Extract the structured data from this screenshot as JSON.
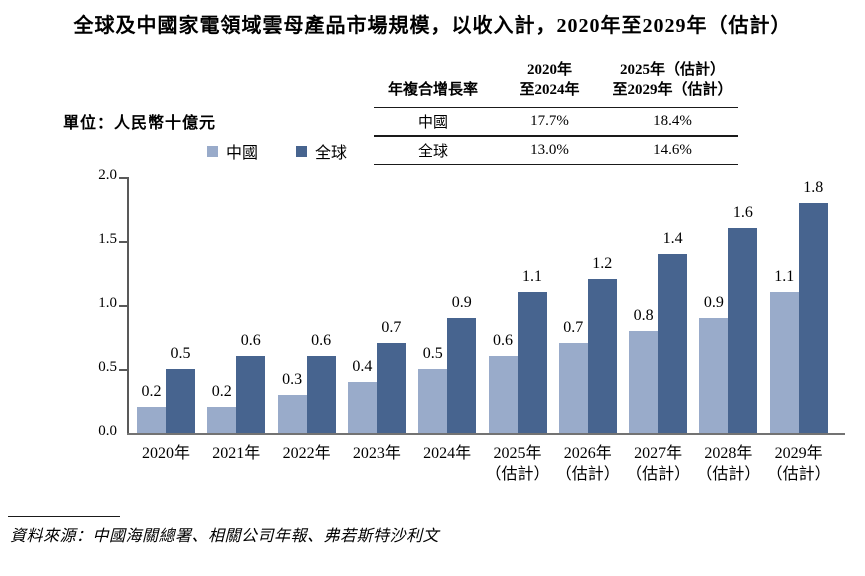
{
  "title": "全球及中國家電領域雲母產品市場規模，以收入計，2020年至2029年（估計）",
  "unit_label": "單位：人民幣十億元",
  "source": "資料來源：中國海關總署、相關公司年報、弗若斯特沙利文",
  "colors": {
    "china_bar": "#99ABCA",
    "global_bar": "#47648F",
    "axis": "#595959",
    "baseline": "#737373",
    "text": "#000000"
  },
  "legend": {
    "items": [
      {
        "label": "中國"
      },
      {
        "label": "全球"
      }
    ]
  },
  "cagr_table": {
    "header": {
      "col1": "年複合增長率",
      "col2_line1": "2020年",
      "col2_line2": "至2024年",
      "col3_line1": "2025年（估計）",
      "col3_line2": "至2029年（估計）"
    },
    "rows": [
      {
        "label": "中國",
        "v1": "17.7%",
        "v2": "18.4%"
      },
      {
        "label": "全球",
        "v1": "13.0%",
        "v2": "14.6%"
      }
    ]
  },
  "chart_data": {
    "type": "bar",
    "title": "全球及中國家電領域雲母產品市場規模，以收入計，2020年至2029年（估計）",
    "ylabel": "單位：人民幣十億元",
    "ylim": [
      0,
      2.0
    ],
    "yticks": [
      "0.0",
      "0.5",
      "1.0",
      "1.5",
      "2.0"
    ],
    "grid": false,
    "legend_position": "top-left",
    "categories": [
      [
        "2020年"
      ],
      [
        "2021年"
      ],
      [
        "2022年"
      ],
      [
        "2023年"
      ],
      [
        "2024年"
      ],
      [
        "2025年",
        "（估計）"
      ],
      [
        "2026年",
        "（估計）"
      ],
      [
        "2027年",
        "（估計）"
      ],
      [
        "2028年",
        "（估計）"
      ],
      [
        "2029年",
        "（估計）"
      ]
    ],
    "series": [
      {
        "name": "中國",
        "color": "#99ABCA",
        "values": [
          0.2,
          0.2,
          0.3,
          0.4,
          0.5,
          0.6,
          0.7,
          0.8,
          0.9,
          1.1
        ]
      },
      {
        "name": "全球",
        "color": "#47648F",
        "values": [
          0.5,
          0.6,
          0.6,
          0.7,
          0.9,
          1.1,
          1.2,
          1.4,
          1.6,
          1.8
        ]
      }
    ],
    "cagr": [
      {
        "name": "中國",
        "2020-2024": "17.7%",
        "2025-2029 (est.)": "18.4%"
      },
      {
        "name": "全球",
        "2020-2024": "13.0%",
        "2025-2029 (est.)": "14.6%"
      }
    ]
  }
}
